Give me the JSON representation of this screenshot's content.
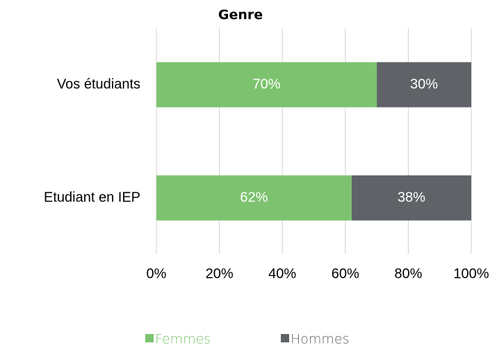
{
  "chart_data": {
    "type": "stacked_bar_horizontal",
    "title": "Genre",
    "categories": [
      "Vos étudiants",
      "Etudiant en IEP"
    ],
    "series": [
      {
        "name": "Femmes",
        "color": "#7dc36f",
        "values": [
          70,
          62
        ],
        "value_labels": [
          "70%",
          "62%"
        ]
      },
      {
        "name": "Hommes",
        "color": "#5f6368",
        "values": [
          30,
          38
        ],
        "value_labels": [
          "30%",
          "38%"
        ]
      }
    ],
    "xlim": [
      0,
      100
    ],
    "xticks": [
      {
        "value": 0,
        "label": "0%"
      },
      {
        "value": 20,
        "label": "20%"
      },
      {
        "value": 40,
        "label": "40%"
      },
      {
        "value": 60,
        "label": "60%"
      },
      {
        "value": 80,
        "label": "80%"
      },
      {
        "value": 100,
        "label": "100%"
      }
    ],
    "grid": true,
    "legend": "bottom"
  }
}
